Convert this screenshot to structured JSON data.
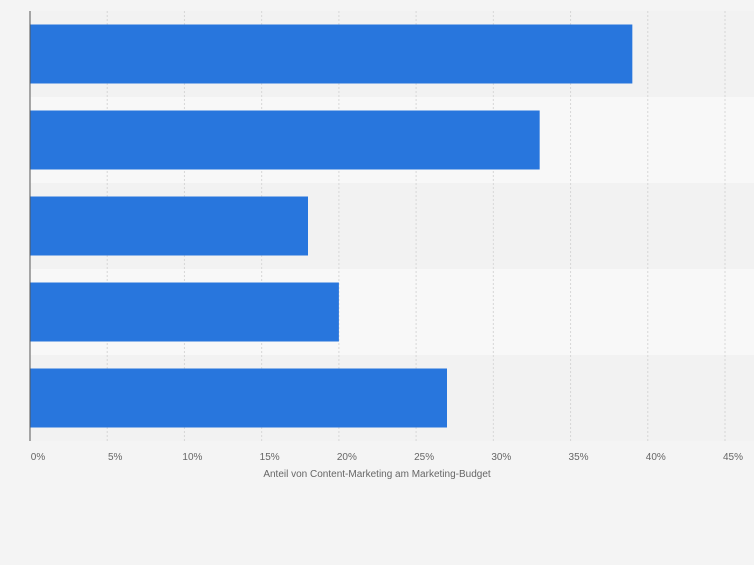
{
  "chart_data": {
    "type": "bar",
    "orientation": "horizontal",
    "categories": [
      "",
      "",
      "",
      "",
      ""
    ],
    "values": [
      39,
      33,
      18,
      20,
      27
    ],
    "xlabel": "Anteil von Content-Marketing am Marketing-Budget",
    "ylabel": "",
    "xlim": [
      0,
      45
    ],
    "ticks": [
      0,
      5,
      10,
      15,
      20,
      25,
      30,
      35,
      40,
      45
    ],
    "tick_labels": [
      "0%",
      "5%",
      "10%",
      "15%",
      "20%",
      "25%",
      "30%",
      "35%",
      "40%",
      "45%"
    ],
    "grid": "vertical dashed",
    "legend": "none",
    "colors": {
      "bar": "#2876dd",
      "band_dark": "#f2f2f2",
      "band_light": "#f8f8f8",
      "grid": "#d7d7d7",
      "axis": "#555555",
      "text": "#666666",
      "background": "#f4f4f4"
    }
  }
}
